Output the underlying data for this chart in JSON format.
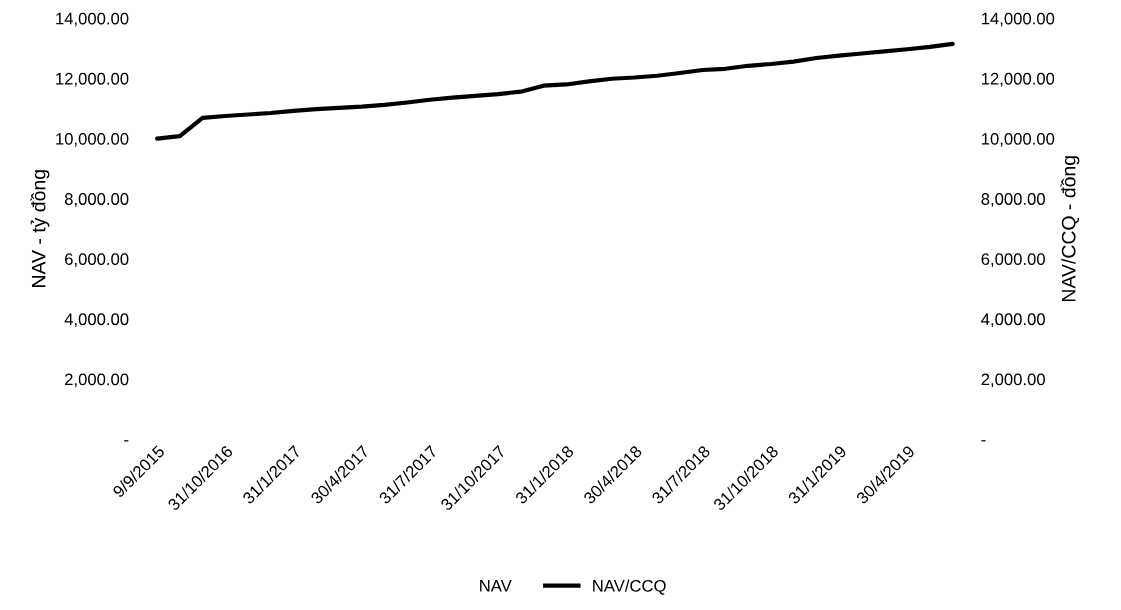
{
  "chart_data": {
    "type": "line",
    "ylabel": "NAV - tỷ đồng",
    "y2label": "NAV/CCQ - đồng",
    "categories": [
      "9/9/2015",
      null,
      null,
      "31/10/2016",
      null,
      null,
      "31/1/2017",
      null,
      null,
      "30/4/2017",
      null,
      null,
      "31/7/2017",
      null,
      null,
      "31/10/2017",
      null,
      null,
      "31/1/2018",
      null,
      null,
      "30/4/2018",
      null,
      null,
      "31/7/2018",
      null,
      null,
      "31/10/2018",
      null,
      null,
      "31/1/2019",
      null,
      null,
      "30/4/2019",
      null,
      null
    ],
    "series": [
      {
        "name": "NAV",
        "type": "bar",
        "values": [
          null,
          null,
          null,
          null,
          null,
          null,
          null,
          null,
          null,
          null,
          null,
          null,
          null,
          null,
          null,
          null,
          null,
          null,
          null,
          null,
          null,
          null,
          null,
          null,
          null,
          null,
          null,
          null,
          null,
          null,
          null,
          null,
          null,
          null,
          null,
          null
        ]
      },
      {
        "name": "NAV/CCQ",
        "color": "#000000",
        "values": [
          10000,
          10080,
          10690,
          10750,
          10800,
          10850,
          10920,
          10980,
          11020,
          11060,
          11120,
          11200,
          11290,
          11360,
          11420,
          11480,
          11560,
          11760,
          11800,
          11900,
          11990,
          12030,
          12090,
          12180,
          12280,
          12320,
          12420,
          12480,
          12560,
          12680,
          12760,
          12830,
          12900,
          12970,
          13050,
          13150
        ]
      }
    ],
    "ylim": [
      0,
      14000
    ],
    "yticks": [
      {
        "value": 0,
        "label": "-"
      },
      {
        "value": 2000,
        "label": "2,000.00"
      },
      {
        "value": 4000,
        "label": "4,000.00"
      },
      {
        "value": 6000,
        "label": "6,000.00"
      },
      {
        "value": 8000,
        "label": "8,000.00"
      },
      {
        "value": 10000,
        "label": "10,000.00"
      },
      {
        "value": 12000,
        "label": "12,000.00"
      },
      {
        "value": 14000,
        "label": "14,000.00"
      }
    ],
    "y2lim": [
      0,
      14000
    ],
    "y2ticks": [
      {
        "value": 0,
        "label": "-"
      },
      {
        "value": 2000,
        "label": "2,000.00"
      },
      {
        "value": 4000,
        "label": "4,000.00"
      },
      {
        "value": 6000,
        "label": "6,000.00"
      },
      {
        "value": 8000,
        "label": "8,000.00"
      },
      {
        "value": 10000,
        "label": "10,000.00"
      },
      {
        "value": 12000,
        "label": "12,000.00"
      },
      {
        "value": 14000,
        "label": "14,000.00"
      }
    ],
    "legend": "bottom"
  }
}
